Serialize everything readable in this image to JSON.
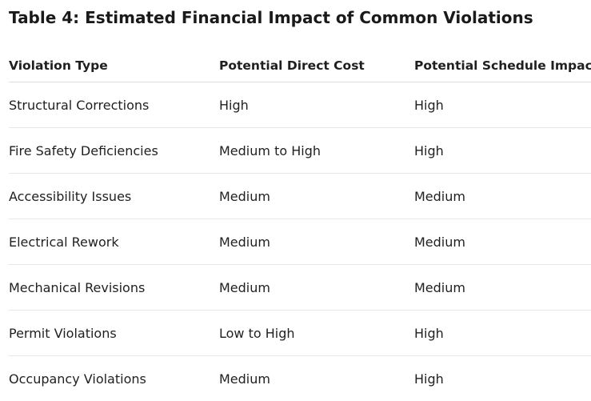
{
  "title": "Table 4: Estimated Financial Impact of Common Violations",
  "headers": [
    "Violation Type",
    "Potential Direct Cost",
    "Potential Schedule Impact"
  ],
  "rows": [
    [
      "Structural Corrections",
      "High",
      "High"
    ],
    [
      "Fire Safety Deficiencies",
      "Medium to High",
      "High"
    ],
    [
      "Accessibility Issues",
      "Medium",
      "Medium"
    ],
    [
      "Electrical Rework",
      "Medium",
      "Medium"
    ],
    [
      "Mechanical Revisions",
      "Medium",
      "Medium"
    ],
    [
      "Permit Violations",
      "Low to High",
      "High"
    ],
    [
      "Occupancy Violations",
      "Medium",
      "High"
    ]
  ]
}
